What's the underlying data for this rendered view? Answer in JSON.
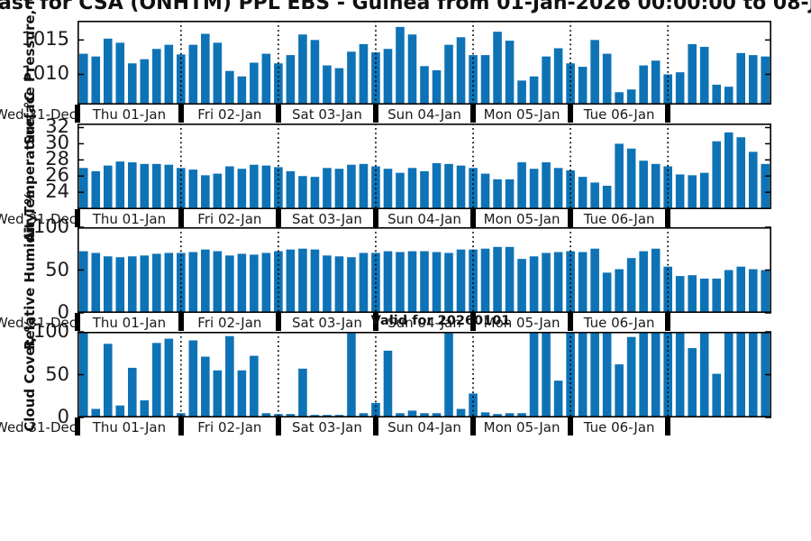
{
  "title": "ast for CSA (ONHTM) PPL EBS  - Guinea from 01-Jan-2026 00:00:00 to 08-Jan-2",
  "annotation": "Valid for 20260101",
  "colors": {
    "bar": "#0e73b6",
    "axis": "#000000",
    "background": "#ffffff",
    "text": "#111111"
  },
  "x_axis": {
    "left_edge_label": "Wed 31-Dec",
    "day_labels": [
      "Thu 01-Jan",
      "Fri 02-Jan",
      "Sat 03-Jan",
      "Sun 04-Jan",
      "Mon 05-Jan",
      "Tue 06-Jan"
    ],
    "bars_per_day": 8,
    "time_step_hours": 3,
    "num_days_shown": 7
  },
  "chart_data": [
    {
      "type": "bar",
      "ylabel": "Surface Pressure, mb",
      "yticks": [
        1010,
        1015
      ],
      "ylim": [
        1005.6,
        1017.8
      ],
      "grid": "dotted-vertical-day-boundaries",
      "legend": "none",
      "values": [
        1013.0,
        1012.6,
        1015.2,
        1014.6,
        1011.6,
        1012.2,
        1013.7,
        1014.3,
        1012.9,
        1014.3,
        1015.9,
        1014.6,
        1010.5,
        1009.7,
        1011.7,
        1013.0,
        1011.6,
        1012.8,
        1015.8,
        1015.0,
        1011.3,
        1010.9,
        1013.3,
        1014.4,
        1013.2,
        1013.7,
        1016.9,
        1015.8,
        1011.2,
        1010.6,
        1014.3,
        1015.4,
        1012.8,
        1012.8,
        1016.2,
        1014.9,
        1009.1,
        1009.7,
        1012.6,
        1013.8,
        1011.6,
        1011.1,
        1015.0,
        1013.0,
        1007.4,
        1007.8,
        1011.3,
        1012.0,
        1010.0,
        1010.3,
        1014.4,
        1014.0,
        1008.5,
        1008.2,
        1013.1,
        1012.8,
        1012.6
      ]
    },
    {
      "type": "bar",
      "ylabel": "Air Temperature, °C",
      "yticks": [
        24,
        26,
        28,
        30,
        32
      ],
      "ylim": [
        21.9,
        32.5
      ],
      "grid": "dotted-vertical-day-boundaries",
      "legend": "none",
      "values": [
        27.0,
        26.6,
        27.3,
        27.8,
        27.7,
        27.5,
        27.5,
        27.4,
        27.0,
        26.8,
        26.1,
        26.3,
        27.2,
        26.9,
        27.4,
        27.3,
        27.1,
        26.6,
        26.0,
        25.9,
        27.0,
        26.9,
        27.4,
        27.5,
        27.2,
        26.9,
        26.4,
        27.0,
        26.6,
        27.6,
        27.5,
        27.3,
        27.0,
        26.3,
        25.6,
        25.6,
        27.7,
        26.9,
        27.7,
        27.0,
        26.7,
        25.9,
        25.2,
        24.8,
        30.0,
        29.4,
        27.9,
        27.5,
        27.2,
        26.2,
        26.1,
        26.4,
        30.3,
        31.4,
        30.8,
        29.0,
        27.5
      ]
    },
    {
      "type": "bar",
      "ylabel": "Relative Humidity, %",
      "yticks": [
        0,
        50,
        100
      ],
      "ylim": [
        0,
        100
      ],
      "grid": "dotted-vertical-day-boundaries",
      "legend": "none",
      "values": [
        72,
        70,
        66,
        65,
        66,
        67,
        69,
        70,
        70,
        71,
        74,
        72,
        67,
        69,
        68,
        70,
        72,
        74,
        75,
        74,
        67,
        66,
        65,
        70,
        70,
        72,
        71,
        72,
        72,
        71,
        70,
        74,
        74,
        75,
        77,
        77,
        63,
        66,
        70,
        71,
        72,
        71,
        75,
        47,
        51,
        64,
        72,
        75,
        54,
        43,
        44,
        40,
        40,
        50,
        54,
        51,
        50
      ]
    },
    {
      "type": "bar",
      "ylabel": "Cloud Cover, %",
      "yticks": [
        0,
        50,
        100
      ],
      "ylim": [
        0,
        100
      ],
      "grid": "dotted-vertical-day-boundaries",
      "legend": "none",
      "values": [
        100,
        10,
        86,
        14,
        58,
        20,
        87,
        92,
        5,
        90,
        71,
        55,
        95,
        55,
        72,
        5,
        4,
        4,
        57,
        3,
        3,
        3,
        100,
        5,
        17,
        78,
        5,
        8,
        5,
        5,
        100,
        10,
        28,
        6,
        4,
        5,
        5,
        100,
        100,
        43,
        100,
        100,
        100,
        100,
        62,
        94,
        100,
        100,
        100,
        100,
        81,
        100,
        51,
        100,
        100,
        100,
        100
      ]
    }
  ]
}
